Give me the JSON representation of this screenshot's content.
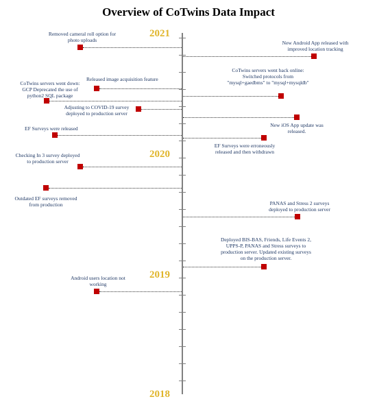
{
  "title": "Overview of CoTwins Data Impact",
  "years": [
    "2021",
    "2020",
    "2019",
    "2018"
  ],
  "events": {
    "e1": "Removed cameral roll option for\nphoto uploads",
    "e2": "New Android App released with\nimproved location tracking",
    "e3": "Released image acquisition feature",
    "e4": "CoTwins servers went back online:\nSwitched protocols from\n\"mysql+gaedbms\" to \"mysql+mysqldb\"",
    "e5": "CoTwins servers went down:\nGCP  Deprecated the use of\npython2 SQL  package",
    "e6": "Adjusting to COVID-19  survey\ndeployed to production server",
    "e7": "New iOS  App update was\nreleased.",
    "e8": "EF Surveys were released",
    "e9": "EF Surveys were erroneously\nreleased and then withdrawn",
    "e10": "Checking In 3 survey deployed\nto production server",
    "e11": "Outdated EF  surveys removed\nfrom production",
    "e12": "PANAS and Stress 2 surveys\ndeployed to production server",
    "e13": "Deployed BIS-BAS,  Friends,  Life Events 2,\nUPPS-P,  PANAS and Stress surveys to\nproduction server.  Updated existing surveys\non the production server.",
    "e14": "Android users location not\nworking"
  },
  "colors": {
    "marker": "#c00000",
    "year": "#e0b52b",
    "text": "#1f3864",
    "axis": "#808080"
  }
}
